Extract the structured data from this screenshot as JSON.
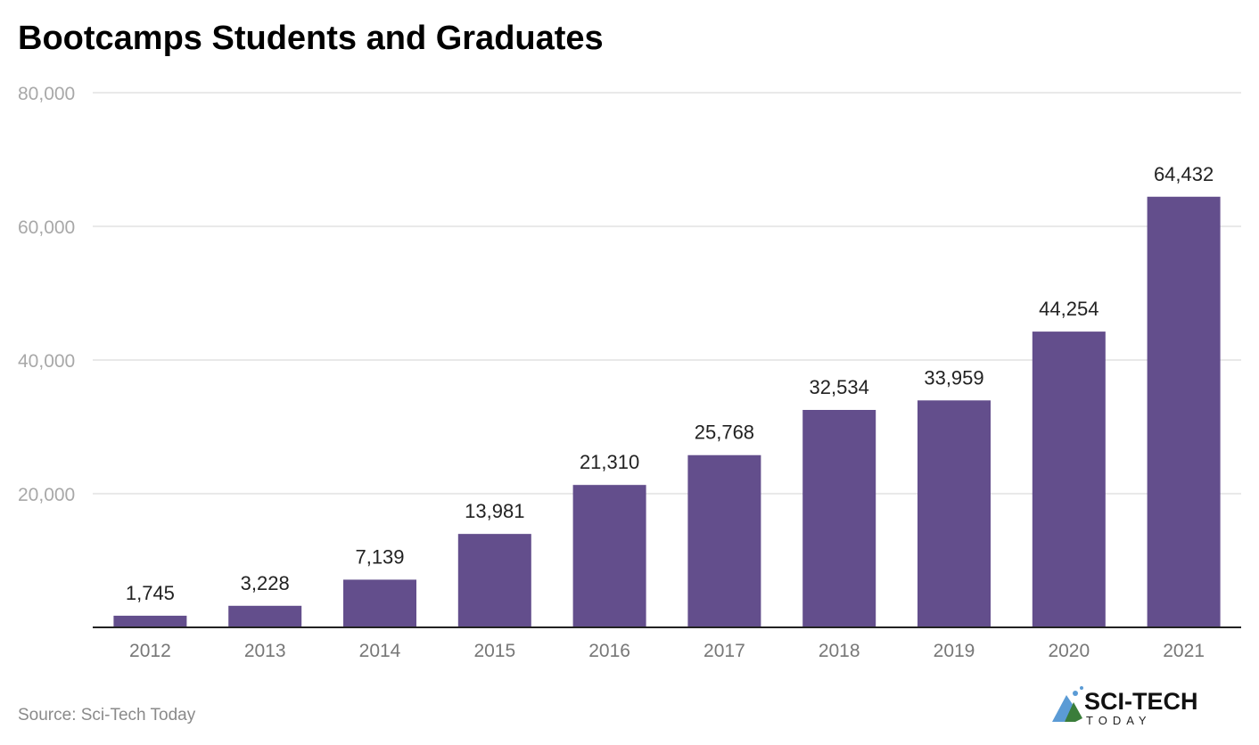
{
  "chart_data": {
    "type": "bar",
    "title": "Bootcamps Students and Graduates",
    "categories": [
      "2012",
      "2013",
      "2014",
      "2015",
      "2016",
      "2017",
      "2018",
      "2019",
      "2020",
      "2021"
    ],
    "values": [
      1745,
      3228,
      7139,
      13981,
      21310,
      25768,
      32534,
      33959,
      44254,
      64432
    ],
    "data_labels": [
      "1,745",
      "3,228",
      "7,139",
      "13,981",
      "21,310",
      "25,768",
      "32,534",
      "33,959",
      "44,254",
      "64,432"
    ],
    "yticks": [
      20000,
      40000,
      60000,
      80000
    ],
    "ytick_labels": [
      "20,000",
      "40,000",
      "60,000",
      "80,000"
    ],
    "ylim": [
      0,
      80000
    ],
    "grid": true,
    "xlabel": "",
    "ylabel": "",
    "bar_color": "#634e8c"
  },
  "source": "Source: Sci-Tech Today",
  "logo": {
    "text": "SCI-TECH",
    "subtext": "TODAY"
  }
}
